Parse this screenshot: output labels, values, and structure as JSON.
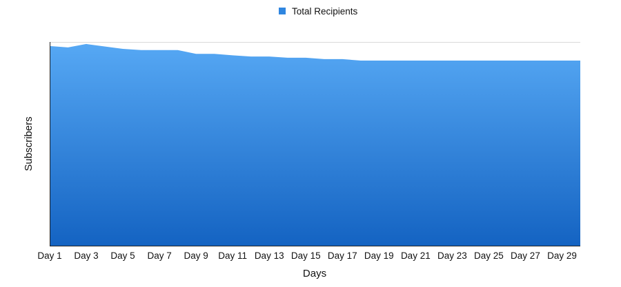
{
  "chart_data": {
    "type": "area",
    "x": [
      "Day 1",
      "Day 2",
      "Day 3",
      "Day 4",
      "Day 5",
      "Day 6",
      "Day 7",
      "Day 8",
      "Day 9",
      "Day 10",
      "Day 11",
      "Day 12",
      "Day 13",
      "Day 14",
      "Day 15",
      "Day 16",
      "Day 17",
      "Day 18",
      "Day 19",
      "Day 20",
      "Day 21",
      "Day 22",
      "Day 23",
      "Day 24",
      "Day 25",
      "Day 26",
      "Day 27",
      "Day 28",
      "Day 29",
      "Day 30"
    ],
    "x_tick_labels": [
      "Day 1",
      "Day 3",
      "Day 5",
      "Day 7",
      "Day 9",
      "Day 11",
      "Day 13",
      "Day 15",
      "Day 17",
      "Day 19",
      "Day 21",
      "Day 23",
      "Day 25",
      "Day 27",
      "Day 29"
    ],
    "series": [
      {
        "name": "Total Recipients",
        "values": [
          99.0,
          98.3,
          100.0,
          98.8,
          97.6,
          97.0,
          97.0,
          97.0,
          95.1,
          95.1,
          94.4,
          93.8,
          93.8,
          93.2,
          93.2,
          92.5,
          92.5,
          91.8,
          91.8,
          91.8,
          91.8,
          91.8,
          91.8,
          91.8,
          91.8,
          91.8,
          91.8,
          91.8,
          91.8,
          91.8
        ]
      }
    ],
    "xlabel": "Days",
    "ylabel": "Subscribers",
    "ylim": [
      0,
      101
    ],
    "y_tick_labels_shown": false,
    "grid": "single top gridline",
    "legend": "top-center",
    "colors": {
      "area_top": "#56a8f4",
      "area_bottom": "#1463c2",
      "legend_swatch": "#2f86e0",
      "axis": "#222222",
      "gridline": "#d9d9d9"
    }
  }
}
